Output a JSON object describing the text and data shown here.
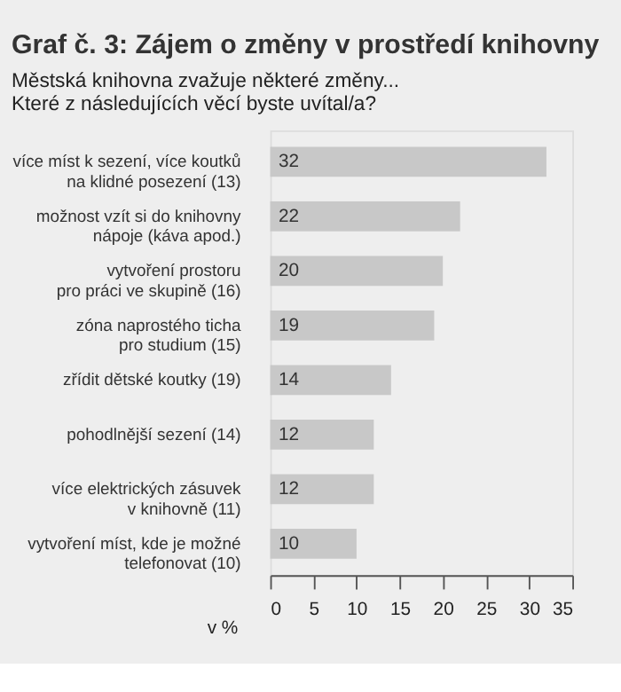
{
  "chart_data": {
    "type": "bar",
    "orientation": "horizontal",
    "title": "Graf č. 3: Zájem o změny v prostředí knihovny",
    "subtitle": "Městská knihovna zvažuje některé změny...\nKteré z následujících věcí byste uvítal/a?",
    "xlabel": "v %",
    "categories": [
      "více míst k sezení, více koutků\nna klidné posezení (13)",
      "možnost vzít si do knihovny\nnápoje (káva apod.)",
      "vytvoření prostoru\npro práci ve skupině (16)",
      "zóna naprostého ticha\npro studium (15)",
      "zřídit dětské koutky (19)",
      "pohodlnější sezení (14)",
      "více elektrických zásuvek\nv knihovně (11)",
      "vytvoření míst, kde je možné\ntelefonovat (10)"
    ],
    "values": [
      32,
      22,
      20,
      19,
      14,
      12,
      12,
      10
    ],
    "color": "#c8c8c8",
    "data_labels": true,
    "xlim": [
      0,
      35
    ],
    "xticks": [
      0,
      5,
      10,
      15,
      20,
      25,
      30,
      35
    ],
    "grid": false
  }
}
